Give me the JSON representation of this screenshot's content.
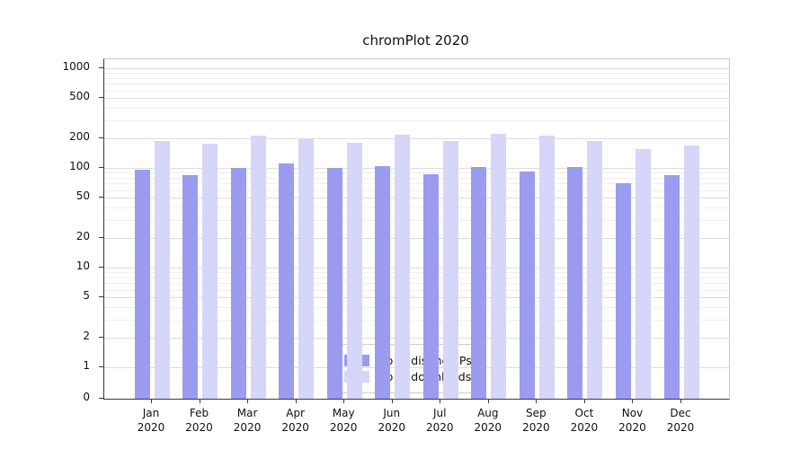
{
  "chart_data": {
    "type": "bar",
    "title": "chromPlot 2020",
    "categories": [
      "Jan",
      "Feb",
      "Mar",
      "Apr",
      "May",
      "Jun",
      "Jul",
      "Aug",
      "Sep",
      "Oct",
      "Nov",
      "Dec"
    ],
    "year_label": "2020",
    "yscale": "symlog",
    "yticks": [
      0,
      1,
      2,
      5,
      10,
      20,
      50,
      100,
      200,
      500,
      1000
    ],
    "ylim": [
      0,
      1300
    ],
    "grid": true,
    "legend_position": "lower center inside",
    "series": [
      {
        "name": "Nb of distinct IPs",
        "color": "#9b9bef",
        "values": [
          95,
          85,
          100,
          110,
          100,
          105,
          87,
          103,
          92,
          103,
          70,
          85
        ]
      },
      {
        "name": "Nb of downloads",
        "color": "#d6d6f9",
        "values": [
          185,
          175,
          210,
          195,
          178,
          215,
          185,
          220,
          212,
          188,
          155,
          168
        ]
      }
    ]
  }
}
